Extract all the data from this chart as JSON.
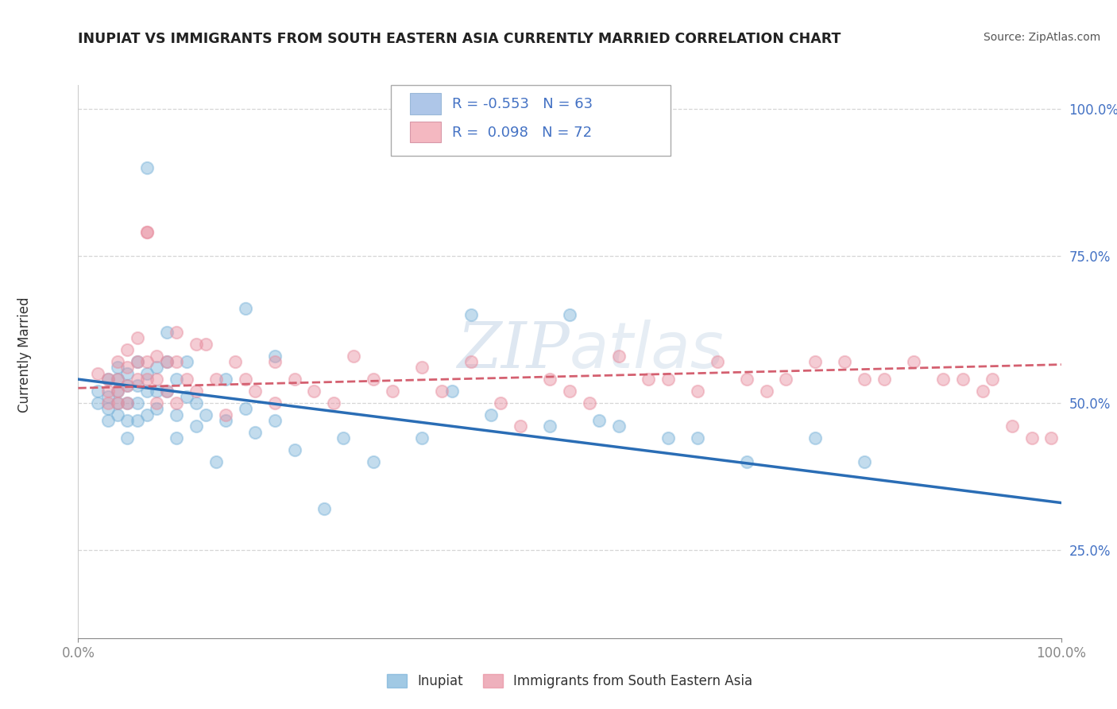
{
  "title": "INUPIAT VS IMMIGRANTS FROM SOUTH EASTERN ASIA CURRENTLY MARRIED CORRELATION CHART",
  "source_text": "Source: ZipAtlas.com",
  "ylabel": "Currently Married",
  "xmin": 0.0,
  "xmax": 1.0,
  "ymin": 0.1,
  "ymax": 1.04,
  "inupiat_color": "#7ab3d9",
  "immigrants_color": "#e88fa0",
  "trendline_inupiat_color": "#2a6db5",
  "trendline_immigrants_color": "#d46070",
  "watermark_color": "#c8d8e8",
  "background_color": "#ffffff",
  "grid_color": "#cccccc",
  "legend_box_color": "#aec6e8",
  "legend_pink_color": "#f4b8c1",
  "legend_text_color": "#4472c4",
  "inupiat_scatter": [
    [
      0.02,
      0.52
    ],
    [
      0.02,
      0.5
    ],
    [
      0.03,
      0.54
    ],
    [
      0.03,
      0.51
    ],
    [
      0.03,
      0.49
    ],
    [
      0.03,
      0.47
    ],
    [
      0.04,
      0.56
    ],
    [
      0.04,
      0.54
    ],
    [
      0.04,
      0.52
    ],
    [
      0.04,
      0.5
    ],
    [
      0.04,
      0.48
    ],
    [
      0.05,
      0.55
    ],
    [
      0.05,
      0.53
    ],
    [
      0.05,
      0.5
    ],
    [
      0.05,
      0.47
    ],
    [
      0.05,
      0.44
    ],
    [
      0.06,
      0.57
    ],
    [
      0.06,
      0.53
    ],
    [
      0.06,
      0.5
    ],
    [
      0.06,
      0.47
    ],
    [
      0.07,
      0.9
    ],
    [
      0.07,
      0.55
    ],
    [
      0.07,
      0.52
    ],
    [
      0.07,
      0.48
    ],
    [
      0.08,
      0.56
    ],
    [
      0.08,
      0.52
    ],
    [
      0.08,
      0.49
    ],
    [
      0.09,
      0.62
    ],
    [
      0.09,
      0.57
    ],
    [
      0.09,
      0.52
    ],
    [
      0.1,
      0.54
    ],
    [
      0.1,
      0.48
    ],
    [
      0.1,
      0.44
    ],
    [
      0.11,
      0.57
    ],
    [
      0.11,
      0.51
    ],
    [
      0.12,
      0.5
    ],
    [
      0.12,
      0.46
    ],
    [
      0.13,
      0.48
    ],
    [
      0.14,
      0.4
    ],
    [
      0.15,
      0.54
    ],
    [
      0.15,
      0.47
    ],
    [
      0.17,
      0.66
    ],
    [
      0.17,
      0.49
    ],
    [
      0.18,
      0.45
    ],
    [
      0.2,
      0.58
    ],
    [
      0.2,
      0.47
    ],
    [
      0.22,
      0.42
    ],
    [
      0.25,
      0.32
    ],
    [
      0.27,
      0.44
    ],
    [
      0.3,
      0.4
    ],
    [
      0.35,
      0.44
    ],
    [
      0.38,
      0.52
    ],
    [
      0.4,
      0.65
    ],
    [
      0.42,
      0.48
    ],
    [
      0.48,
      0.46
    ],
    [
      0.5,
      0.65
    ],
    [
      0.53,
      0.47
    ],
    [
      0.55,
      0.46
    ],
    [
      0.6,
      0.44
    ],
    [
      0.63,
      0.44
    ],
    [
      0.68,
      0.4
    ],
    [
      0.75,
      0.44
    ],
    [
      0.8,
      0.4
    ]
  ],
  "immigrants_scatter": [
    [
      0.02,
      0.55
    ],
    [
      0.03,
      0.54
    ],
    [
      0.03,
      0.52
    ],
    [
      0.03,
      0.5
    ],
    [
      0.04,
      0.57
    ],
    [
      0.04,
      0.54
    ],
    [
      0.04,
      0.52
    ],
    [
      0.04,
      0.5
    ],
    [
      0.05,
      0.59
    ],
    [
      0.05,
      0.56
    ],
    [
      0.05,
      0.53
    ],
    [
      0.05,
      0.5
    ],
    [
      0.06,
      0.61
    ],
    [
      0.06,
      0.57
    ],
    [
      0.06,
      0.54
    ],
    [
      0.07,
      0.79
    ],
    [
      0.07,
      0.79
    ],
    [
      0.07,
      0.57
    ],
    [
      0.07,
      0.54
    ],
    [
      0.08,
      0.58
    ],
    [
      0.08,
      0.54
    ],
    [
      0.08,
      0.5
    ],
    [
      0.09,
      0.57
    ],
    [
      0.09,
      0.52
    ],
    [
      0.1,
      0.62
    ],
    [
      0.1,
      0.57
    ],
    [
      0.1,
      0.5
    ],
    [
      0.11,
      0.54
    ],
    [
      0.12,
      0.6
    ],
    [
      0.12,
      0.52
    ],
    [
      0.13,
      0.6
    ],
    [
      0.14,
      0.54
    ],
    [
      0.15,
      0.48
    ],
    [
      0.16,
      0.57
    ],
    [
      0.17,
      0.54
    ],
    [
      0.18,
      0.52
    ],
    [
      0.2,
      0.57
    ],
    [
      0.2,
      0.5
    ],
    [
      0.22,
      0.54
    ],
    [
      0.24,
      0.52
    ],
    [
      0.26,
      0.5
    ],
    [
      0.28,
      0.58
    ],
    [
      0.3,
      0.54
    ],
    [
      0.32,
      0.52
    ],
    [
      0.35,
      0.56
    ],
    [
      0.37,
      0.52
    ],
    [
      0.4,
      0.57
    ],
    [
      0.43,
      0.5
    ],
    [
      0.45,
      0.46
    ],
    [
      0.48,
      0.54
    ],
    [
      0.5,
      0.52
    ],
    [
      0.52,
      0.5
    ],
    [
      0.55,
      0.58
    ],
    [
      0.58,
      0.54
    ],
    [
      0.6,
      0.54
    ],
    [
      0.63,
      0.52
    ],
    [
      0.65,
      0.57
    ],
    [
      0.68,
      0.54
    ],
    [
      0.7,
      0.52
    ],
    [
      0.72,
      0.54
    ],
    [
      0.75,
      0.57
    ],
    [
      0.78,
      0.57
    ],
    [
      0.8,
      0.54
    ],
    [
      0.82,
      0.54
    ],
    [
      0.85,
      0.57
    ],
    [
      0.88,
      0.54
    ],
    [
      0.9,
      0.54
    ],
    [
      0.92,
      0.52
    ],
    [
      0.93,
      0.54
    ],
    [
      0.95,
      0.46
    ],
    [
      0.97,
      0.44
    ],
    [
      0.99,
      0.44
    ]
  ],
  "inupiat_trendline": [
    [
      0.0,
      0.54
    ],
    [
      1.0,
      0.33
    ]
  ],
  "immigrants_trendline": [
    [
      0.0,
      0.525
    ],
    [
      1.0,
      0.565
    ]
  ],
  "ytick_vals": [
    0.25,
    0.5,
    0.75,
    1.0
  ],
  "ytick_labels": [
    "25.0%",
    "50.0%",
    "75.0%",
    "100.0%"
  ],
  "xtick_vals": [
    0.0,
    1.0
  ],
  "xtick_labels": [
    "0.0%",
    "100.0%"
  ]
}
